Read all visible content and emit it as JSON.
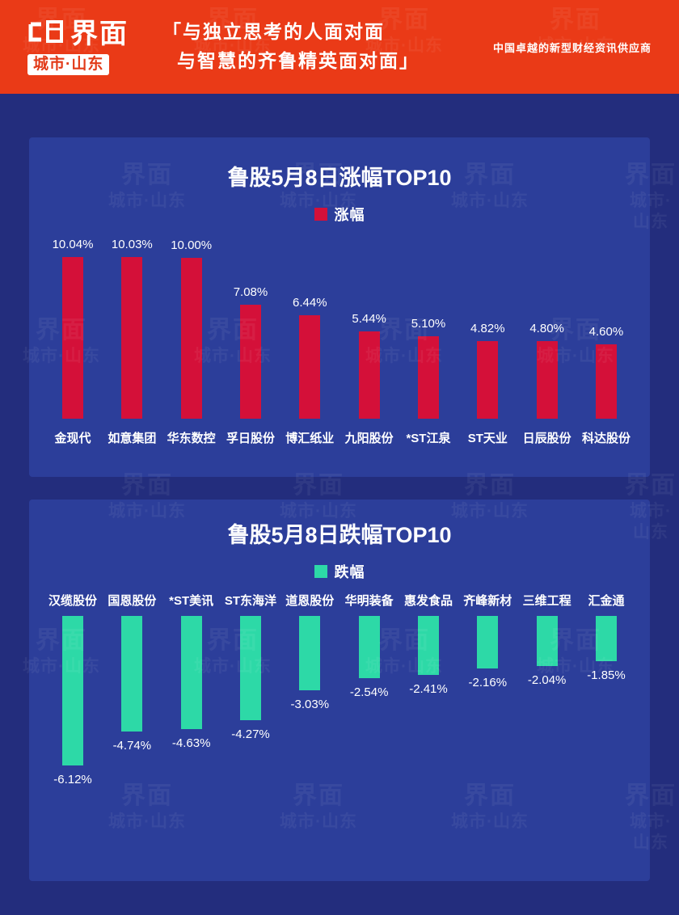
{
  "header": {
    "logo_text": "界面",
    "logo_sub": "城市·山东",
    "slogan_line1": "「与独立思考的人面对面",
    "slogan_line2": "与智慧的齐鲁精英面对面」",
    "tagline": "中国卓越的新型财经资讯供应商",
    "bg_color": "#ea3a17"
  },
  "watermark": {
    "line1": "界面",
    "line2": "城市·山东"
  },
  "colors": {
    "background": "#232d7d",
    "card": "#2c3e9a",
    "rise": "#d41039",
    "fall": "#2dd9a7"
  },
  "chart_data": [
    {
      "type": "bar",
      "title": "鲁股5月8日涨幅TOP10",
      "legend": "涨幅",
      "bar_color": "#d41039",
      "direction": "up",
      "value_suffix": "%",
      "categories": [
        "金现代",
        "如意集团",
        "华东数控",
        "孚日股份",
        "博汇纸业",
        "九阳股份",
        "*ST江泉",
        "ST天业",
        "日辰股份",
        "科达股份"
      ],
      "values": [
        10.04,
        10.03,
        10.0,
        7.08,
        6.44,
        5.44,
        5.1,
        4.82,
        4.8,
        4.6
      ]
    },
    {
      "type": "bar",
      "title": "鲁股5月8日跌幅TOP10",
      "legend": "跌幅",
      "bar_color": "#2dd9a7",
      "direction": "down",
      "value_suffix": "%",
      "categories": [
        "汉缆股份",
        "国恩股份",
        "*ST美讯",
        "ST东海洋",
        "道恩股份",
        "华明装备",
        "惠发食品",
        "齐峰新材",
        "三维工程",
        "汇金通"
      ],
      "values": [
        -6.12,
        -4.74,
        -4.63,
        -4.27,
        -3.03,
        -2.54,
        -2.41,
        -2.16,
        -2.04,
        -1.85
      ]
    }
  ]
}
